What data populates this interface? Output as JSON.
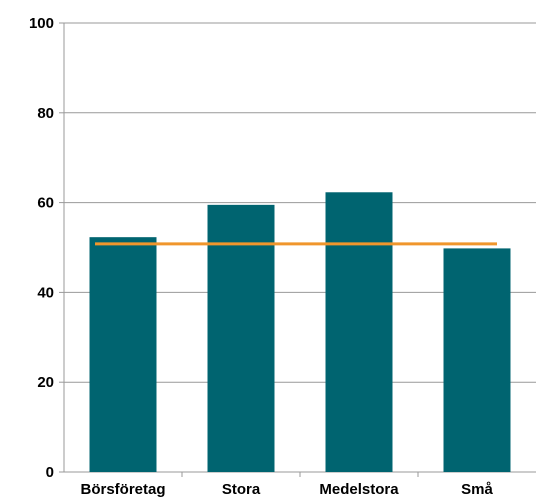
{
  "chart_data": {
    "type": "bar",
    "categories": [
      "Börsföretag",
      "Stora",
      "Medelstora",
      "Små"
    ],
    "values": [
      52.3,
      59.5,
      62.3,
      49.8
    ],
    "reference_line": {
      "value": 50.8
    },
    "ylim": [
      0,
      100
    ],
    "yticks": [
      "0",
      "20",
      "40",
      "60",
      "80",
      "100"
    ],
    "grid": true,
    "legend": "none",
    "colors": {
      "bar": "#006470",
      "line": "#F0962C",
      "grid": "#999999",
      "axis": "#999999"
    }
  }
}
